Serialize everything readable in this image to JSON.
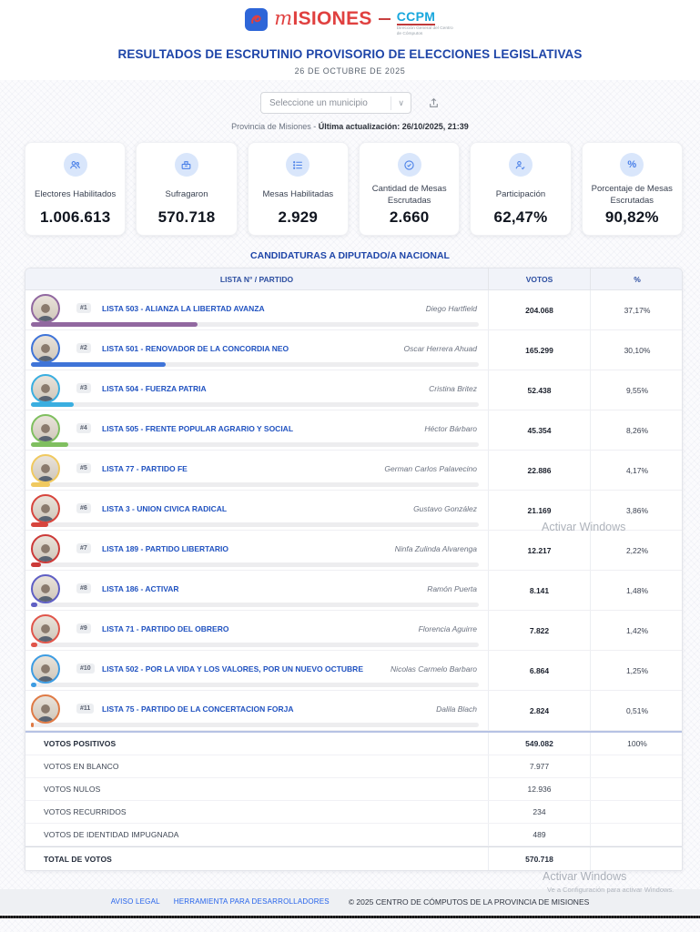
{
  "header": {
    "brand_m": "m",
    "brand_rest": "ISIONES",
    "ccpm": "CCPM",
    "ccpm_sub": "Dirección General del Centro de Cómputos",
    "title": "RESULTADOS DE ESCRUTINIO PROVISORIO DE ELECCIONES LEGISLATIVAS",
    "date": "26 DE OCTUBRE DE 2025"
  },
  "controls": {
    "select_placeholder": "Seleccione un municipio",
    "scope_prefix": "Provincia de Misiones - ",
    "last_update": "Última actualización: 26/10/2025, 21:39"
  },
  "stats": [
    {
      "icon": "voters-icon",
      "label": "Electores Habilitados",
      "value": "1.006.613"
    },
    {
      "icon": "ballot-icon",
      "label": "Sufragaron",
      "value": "570.718"
    },
    {
      "icon": "tables-list-icon",
      "label": "Mesas Habilitadas",
      "value": "2.929"
    },
    {
      "icon": "check-circle-icon",
      "label": "Cantidad de Mesas Escrutadas",
      "value": "2.660"
    },
    {
      "icon": "participation-icon",
      "label": "Participación",
      "value": "62,47%"
    },
    {
      "icon": "percent-icon",
      "label": "Porcentaje de Mesas Escrutadas",
      "value": "90,82%"
    }
  ],
  "section_title": "CANDIDATURAS A DIPUTADO/A NACIONAL",
  "table": {
    "headers": {
      "party": "LISTA N° / PARTIDO",
      "votes": "VOTOS",
      "percent": "%"
    },
    "rows": [
      {
        "rank": "#1",
        "party": "LISTA 503 - ALIANZA LA LIBERTAD AVANZA",
        "candidate": "Diego Hartfield",
        "votes": "204.068",
        "percent": "37,17%",
        "pct": 37.17,
        "color": "#9168a0"
      },
      {
        "rank": "#2",
        "party": "LISTA 501 - RENOVADOR DE LA CONCORDIA NEO",
        "candidate": "Oscar Herrera Ahuad",
        "votes": "165.299",
        "percent": "30,10%",
        "pct": 30.1,
        "color": "#3f74d8"
      },
      {
        "rank": "#3",
        "party": "LISTA 504 - FUERZA PATRIA",
        "candidate": "Cristina Britez",
        "votes": "52.438",
        "percent": "9,55%",
        "pct": 9.55,
        "color": "#3aaee0"
      },
      {
        "rank": "#4",
        "party": "LISTA 505 - FRENTE POPULAR AGRARIO Y SOCIAL",
        "candidate": "Héctor Bárbaro",
        "votes": "45.354",
        "percent": "8,26%",
        "pct": 8.26,
        "color": "#7fbf5f"
      },
      {
        "rank": "#5",
        "party": "LISTA 77 - PARTIDO FE",
        "candidate": "German Carlos Palavecino",
        "votes": "22.886",
        "percent": "4,17%",
        "pct": 4.17,
        "color": "#f0c95f"
      },
      {
        "rank": "#6",
        "party": "LISTA 3 - UNION CIVICA RADICAL",
        "candidate": "Gustavo González",
        "votes": "21.169",
        "percent": "3,86%",
        "pct": 3.86,
        "color": "#d7453d"
      },
      {
        "rank": "#7",
        "party": "LISTA 189 - PARTIDO LIBERTARIO",
        "candidate": "Ninfa Zulinda Alvarenga",
        "votes": "12.217",
        "percent": "2,22%",
        "pct": 2.22,
        "color": "#cc3a38"
      },
      {
        "rank": "#8",
        "party": "LISTA 186 - ACTIVAR",
        "candidate": "Ramón Puerta",
        "votes": "8.141",
        "percent": "1,48%",
        "pct": 1.48,
        "color": "#5f5fc4"
      },
      {
        "rank": "#9",
        "party": "LISTA 71 - PARTIDO DEL OBRERO",
        "candidate": "Florencia Aguirre",
        "votes": "7.822",
        "percent": "1,42%",
        "pct": 1.42,
        "color": "#e0554a"
      },
      {
        "rank": "#10",
        "party": "LISTA 502 - POR LA VIDA Y LOS VALORES, POR UN NUEVO OCTUBRE",
        "candidate": "Nicolas Carmelo Barbaro",
        "votes": "6.864",
        "percent": "1,25%",
        "pct": 1.25,
        "color": "#3d9ce2"
      },
      {
        "rank": "#11",
        "party": "LISTA 75 - PARTIDO DE LA CONCERTACION FORJA",
        "candidate": "Dalila Blach",
        "votes": "2.824",
        "percent": "0,51%",
        "pct": 0.51,
        "color": "#df7a45"
      }
    ],
    "summary": [
      {
        "label": "VOTOS POSITIVOS",
        "votes": "549.082",
        "percent": "100%",
        "bold": true
      },
      {
        "label": "VOTOS EN BLANCO",
        "votes": "7.977",
        "percent": "",
        "bold": false
      },
      {
        "label": "VOTOS NULOS",
        "votes": "12.936",
        "percent": "",
        "bold": false
      },
      {
        "label": "VOTOS RECURRIDOS",
        "votes": "234",
        "percent": "",
        "bold": false
      },
      {
        "label": "VOTOS DE IDENTIDAD IMPUGNADA",
        "votes": "489",
        "percent": "",
        "bold": false
      },
      {
        "label": "TOTAL DE VOTOS",
        "votes": "570.718",
        "percent": "",
        "bold": true
      }
    ]
  },
  "watermark": {
    "line1": "Activar Windows",
    "line2": "Activar Windows",
    "sub": "Ve a Configuración para activar Windows."
  },
  "footer": {
    "links": [
      "AVISO LEGAL",
      "HERRAMIENTA PARA DESARROLLADORES"
    ],
    "copyright": "© 2025 CENTRO DE CÓMPUTOS DE LA PROVINCIA DE MISIONES"
  },
  "colors": {
    "title_blue": "#1e45a8",
    "party_blue": "#2052c0",
    "ccpm_cyan": "#18a7dd",
    "brand_red": "#e0403f",
    "header_row_bg": "#f1f3f9",
    "footer_bg": "#eef0f3",
    "icon_circle_bg": "#d9e6fb",
    "icon_blue": "#4a80e8"
  }
}
